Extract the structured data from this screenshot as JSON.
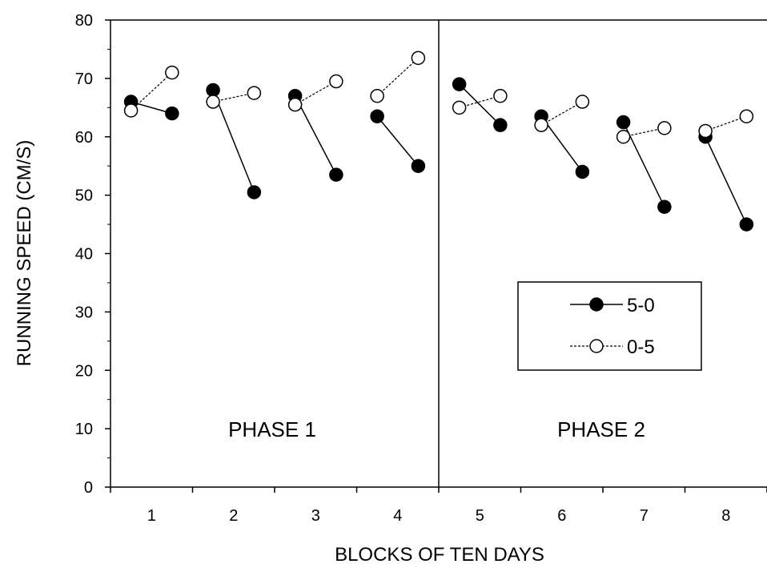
{
  "chart_data": {
    "type": "scatter",
    "xlabel": "BLOCKS OF TEN DAYS",
    "ylabel": "RUNNING SPEED (CM/S)",
    "xlim": [
      0.5,
      8.5
    ],
    "ylim": [
      0,
      80
    ],
    "x_ticks": [
      "1",
      "2",
      "3",
      "4",
      "5",
      "6",
      "7",
      "8"
    ],
    "y_ticks": [
      "0",
      "10",
      "20",
      "30",
      "40",
      "50",
      "60",
      "70",
      "80"
    ],
    "grid": false,
    "legend_position": "right-center",
    "phase_labels": [
      "PHASE 1",
      "PHASE 2"
    ],
    "series": [
      {
        "name": "5-0",
        "marker": "filled-circle",
        "line": "solid",
        "color": "#000000",
        "segments": [
          [
            {
              "x": 0.75,
              "y": 66
            },
            {
              "x": 1.25,
              "y": 64
            }
          ],
          [
            {
              "x": 1.75,
              "y": 68
            },
            {
              "x": 2.25,
              "y": 50.5
            }
          ],
          [
            {
              "x": 2.75,
              "y": 67
            },
            {
              "x": 3.25,
              "y": 53.5
            }
          ],
          [
            {
              "x": 3.75,
              "y": 63.5
            },
            {
              "x": 4.25,
              "y": 55
            }
          ],
          [
            {
              "x": 4.75,
              "y": 69
            },
            {
              "x": 5.25,
              "y": 62
            }
          ],
          [
            {
              "x": 5.75,
              "y": 63.5
            },
            {
              "x": 6.25,
              "y": 54
            }
          ],
          [
            {
              "x": 6.75,
              "y": 62.5
            },
            {
              "x": 7.25,
              "y": 48
            }
          ],
          [
            {
              "x": 7.75,
              "y": 60
            },
            {
              "x": 8.25,
              "y": 45
            }
          ]
        ]
      },
      {
        "name": "0-5",
        "marker": "open-circle",
        "line": "dashed",
        "color": "#000000",
        "segments": [
          [
            {
              "x": 0.75,
              "y": 64.5
            },
            {
              "x": 1.25,
              "y": 71
            }
          ],
          [
            {
              "x": 1.75,
              "y": 66
            },
            {
              "x": 2.25,
              "y": 67.5
            }
          ],
          [
            {
              "x": 2.75,
              "y": 65.5
            },
            {
              "x": 3.25,
              "y": 69.5
            }
          ],
          [
            {
              "x": 3.75,
              "y": 67
            },
            {
              "x": 4.25,
              "y": 73.5
            }
          ],
          [
            {
              "x": 4.75,
              "y": 65
            },
            {
              "x": 5.25,
              "y": 67
            }
          ],
          [
            {
              "x": 5.75,
              "y": 62
            },
            {
              "x": 6.25,
              "y": 66
            }
          ],
          [
            {
              "x": 6.75,
              "y": 60
            },
            {
              "x": 7.25,
              "y": 61.5
            }
          ],
          [
            {
              "x": 7.75,
              "y": 61
            },
            {
              "x": 8.25,
              "y": 63.5
            }
          ]
        ]
      }
    ]
  }
}
